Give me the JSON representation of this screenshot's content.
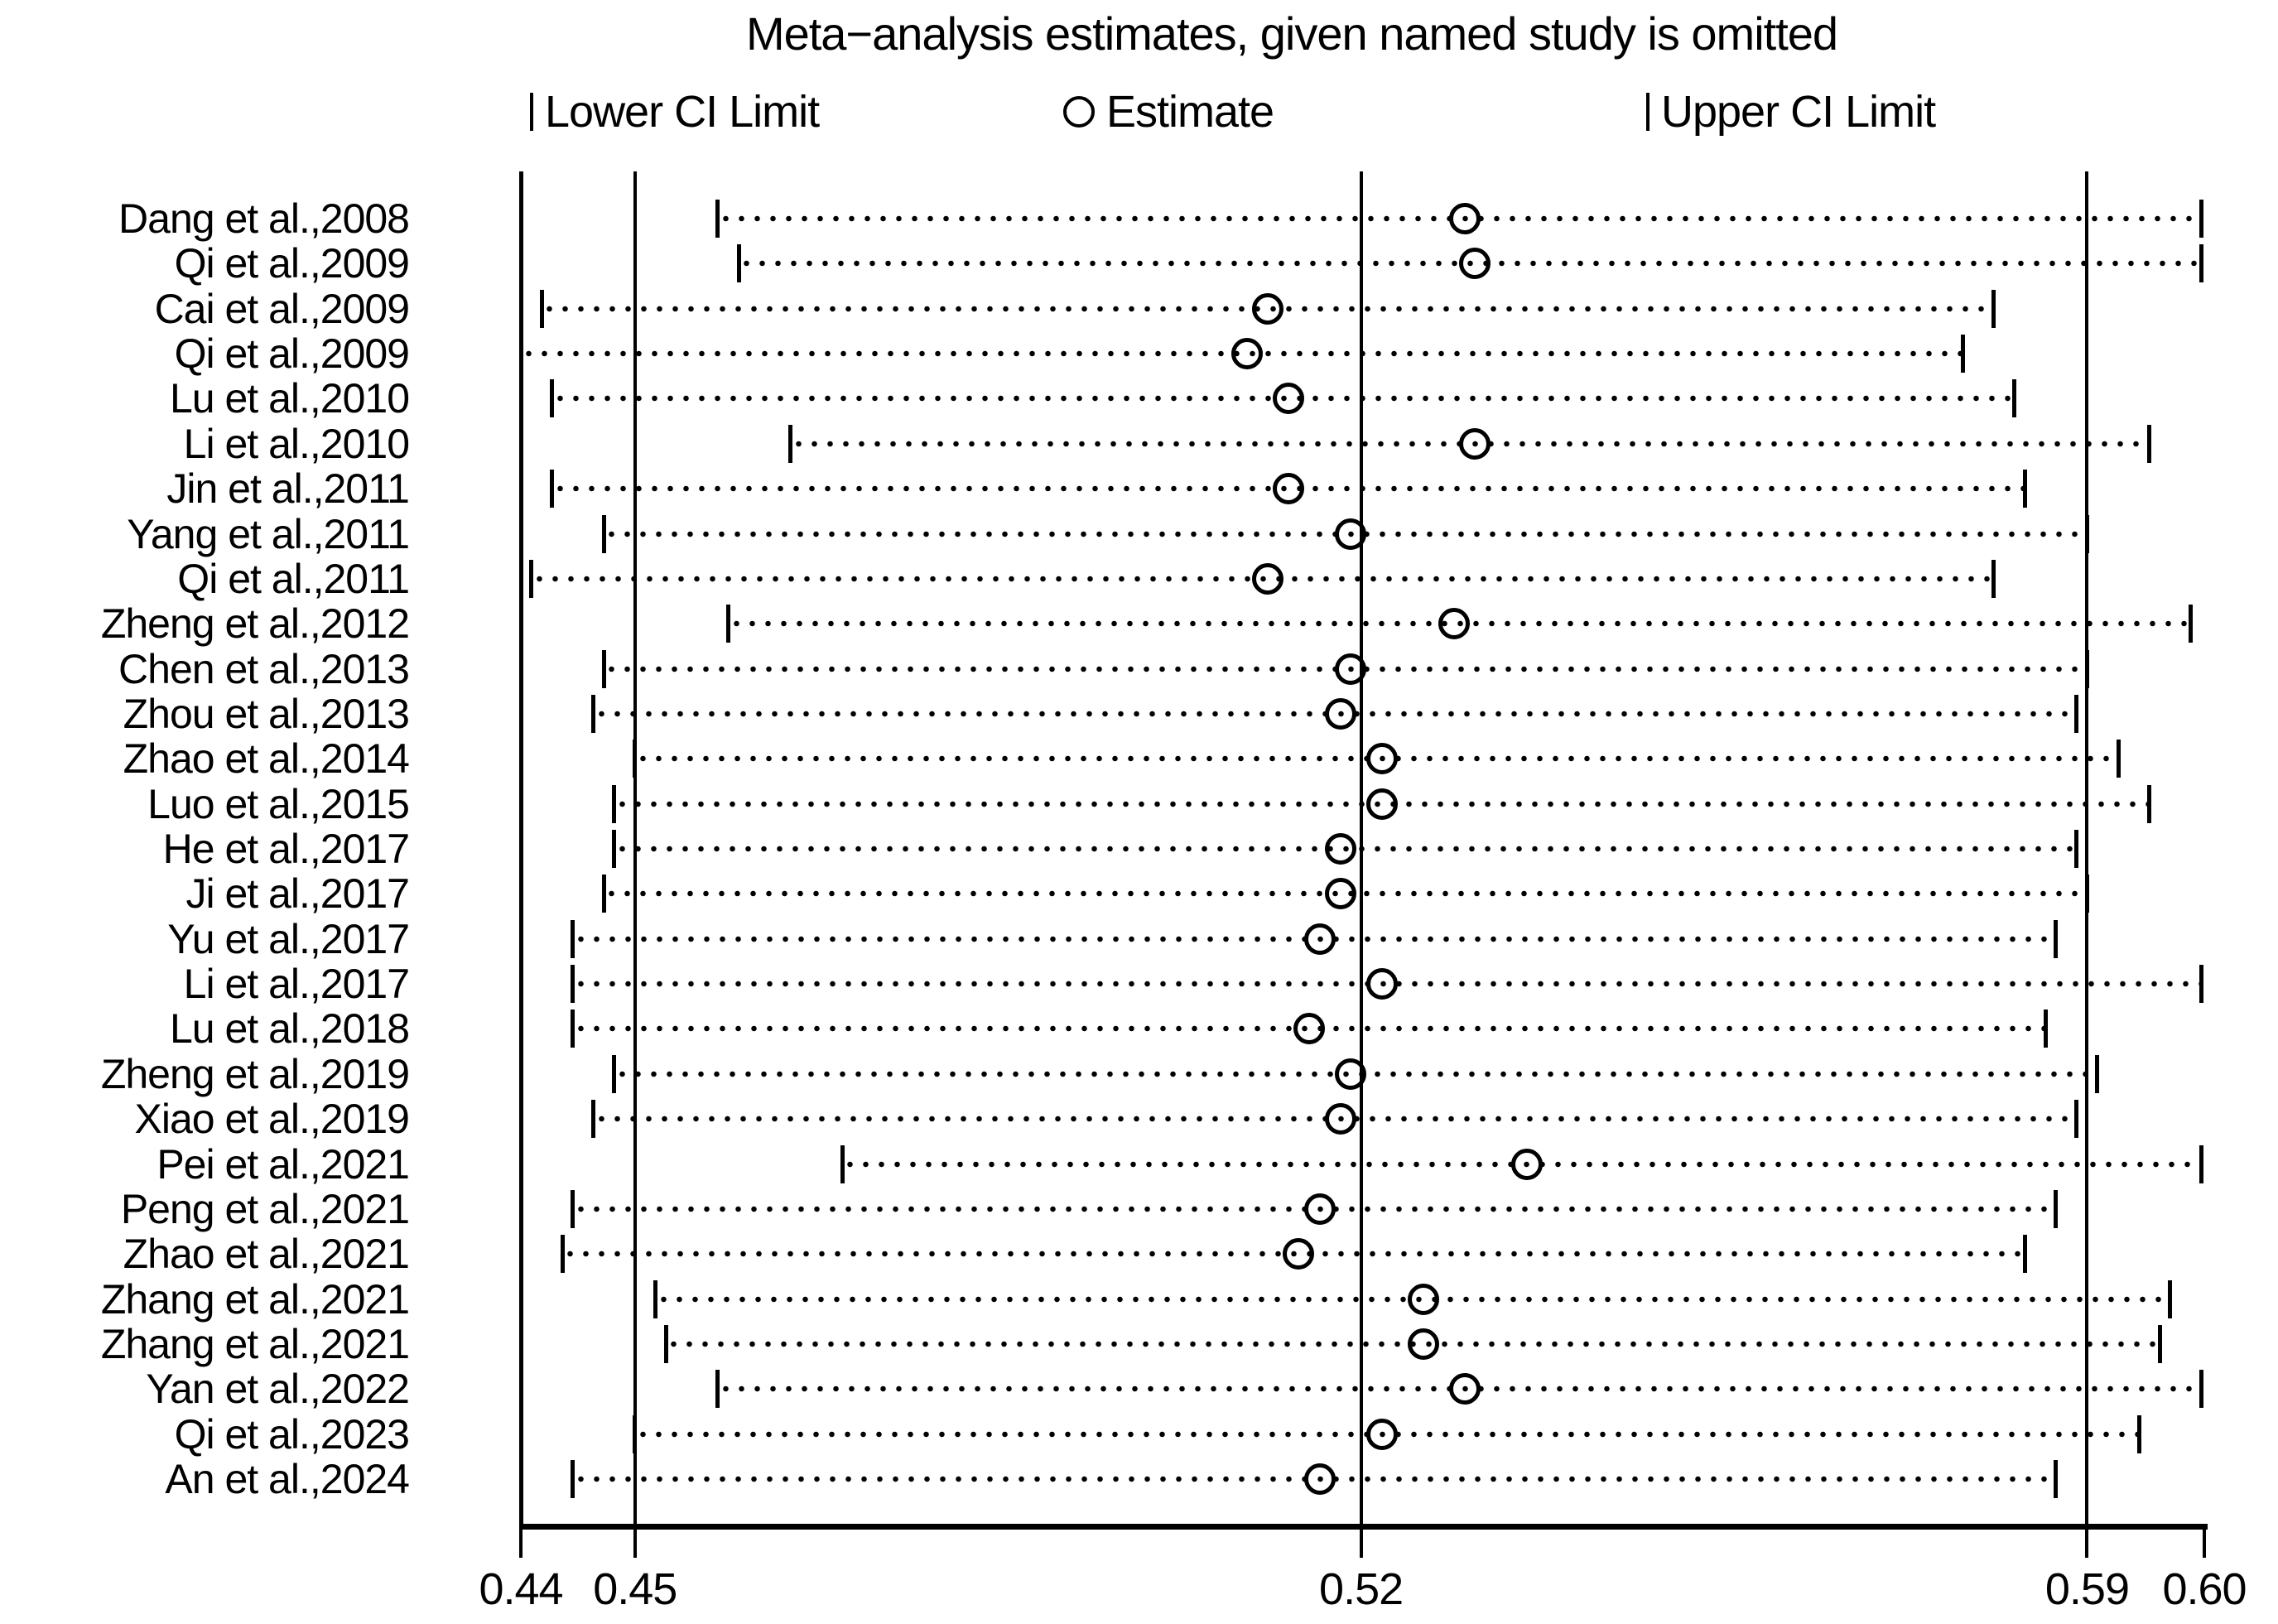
{
  "title": "Meta−analysis estimates, given named study is omitted",
  "legend": {
    "lower_label": "Lower CI Limit",
    "estimate_label": "Estimate",
    "upper_label": "Upper CI Limit"
  },
  "colors": {
    "ink": "#000000",
    "background": "#ffffff"
  },
  "chart_data": {
    "type": "scatter",
    "subtype": "leave-one-out-forest",
    "title": "Meta−analysis estimates, given named study is omitted",
    "xlabel": "",
    "ylabel": "",
    "grid": "vertical-reference-lines",
    "legend_position": "top",
    "axis": {
      "min": 0.439,
      "max": 0.6013,
      "ticks": [
        {
          "label": "0.44",
          "value": 0.439
        },
        {
          "label": "0.45",
          "value": 0.45
        },
        {
          "label": "0.52",
          "value": 0.52
        },
        {
          "label": "0.59",
          "value": 0.59
        },
        {
          "label": "0.60",
          "value": 0.6013
        }
      ],
      "reference_lines": [
        0.45,
        0.52,
        0.59
      ],
      "left_edge_line": 0.439
    },
    "studies": [
      {
        "label": "Dang et al.,2008",
        "lower": 0.458,
        "estimate": 0.53,
        "upper": 0.601
      },
      {
        "label": "Qi et al.,2009",
        "lower": 0.46,
        "estimate": 0.531,
        "upper": 0.601
      },
      {
        "label": "Cai et al.,2009",
        "lower": 0.441,
        "estimate": 0.511,
        "upper": 0.581
      },
      {
        "label": "Qi et al.,2009",
        "lower": 0.439,
        "estimate": 0.509,
        "upper": 0.578
      },
      {
        "label": "Lu et al.,2010",
        "lower": 0.442,
        "estimate": 0.513,
        "upper": 0.583
      },
      {
        "label": "Li et al.,2010",
        "lower": 0.465,
        "estimate": 0.531,
        "upper": 0.596
      },
      {
        "label": "Jin et al.,2011",
        "lower": 0.442,
        "estimate": 0.513,
        "upper": 0.584
      },
      {
        "label": "Yang et al.,2011",
        "lower": 0.447,
        "estimate": 0.519,
        "upper": 0.59
      },
      {
        "label": "Qi et al.,2011",
        "lower": 0.44,
        "estimate": 0.511,
        "upper": 0.581
      },
      {
        "label": "Zheng et al.,2012",
        "lower": 0.459,
        "estimate": 0.529,
        "upper": 0.6
      },
      {
        "label": "Chen et al.,2013",
        "lower": 0.447,
        "estimate": 0.519,
        "upper": 0.59
      },
      {
        "label": "Zhou et al.,2013",
        "lower": 0.446,
        "estimate": 0.518,
        "upper": 0.589
      },
      {
        "label": "Zhao et al.,2014",
        "lower": 0.45,
        "estimate": 0.522,
        "upper": 0.593
      },
      {
        "label": "Luo et al.,2015",
        "lower": 0.448,
        "estimate": 0.522,
        "upper": 0.596
      },
      {
        "label": "He et al.,2017",
        "lower": 0.448,
        "estimate": 0.518,
        "upper": 0.589
      },
      {
        "label": "Ji et al.,2017",
        "lower": 0.447,
        "estimate": 0.518,
        "upper": 0.59
      },
      {
        "label": "Yu et al.,2017",
        "lower": 0.444,
        "estimate": 0.516,
        "upper": 0.587
      },
      {
        "label": "Li et al.,2017",
        "lower": 0.444,
        "estimate": 0.522,
        "upper": 0.601
      },
      {
        "label": "Lu et al.,2018",
        "lower": 0.444,
        "estimate": 0.515,
        "upper": 0.586
      },
      {
        "label": "Zheng et al.,2019",
        "lower": 0.448,
        "estimate": 0.519,
        "upper": 0.591
      },
      {
        "label": "Xiao et al.,2019",
        "lower": 0.446,
        "estimate": 0.518,
        "upper": 0.589
      },
      {
        "label": "Pei et al.,2021",
        "lower": 0.47,
        "estimate": 0.536,
        "upper": 0.601
      },
      {
        "label": "Peng et al.,2021",
        "lower": 0.444,
        "estimate": 0.516,
        "upper": 0.587
      },
      {
        "label": "Zhao et al.,2021",
        "lower": 0.443,
        "estimate": 0.514,
        "upper": 0.584
      },
      {
        "label": "Zhang et al.,2021",
        "lower": 0.452,
        "estimate": 0.526,
        "upper": 0.598
      },
      {
        "label": "Zhang et al.,2021",
        "lower": 0.453,
        "estimate": 0.526,
        "upper": 0.597
      },
      {
        "label": "Yan et al.,2022",
        "lower": 0.458,
        "estimate": 0.53,
        "upper": 0.601
      },
      {
        "label": "Qi et al.,2023",
        "lower": 0.45,
        "estimate": 0.522,
        "upper": 0.595
      },
      {
        "label": "An et al.,2024",
        "lower": 0.444,
        "estimate": 0.516,
        "upper": 0.587
      }
    ]
  }
}
